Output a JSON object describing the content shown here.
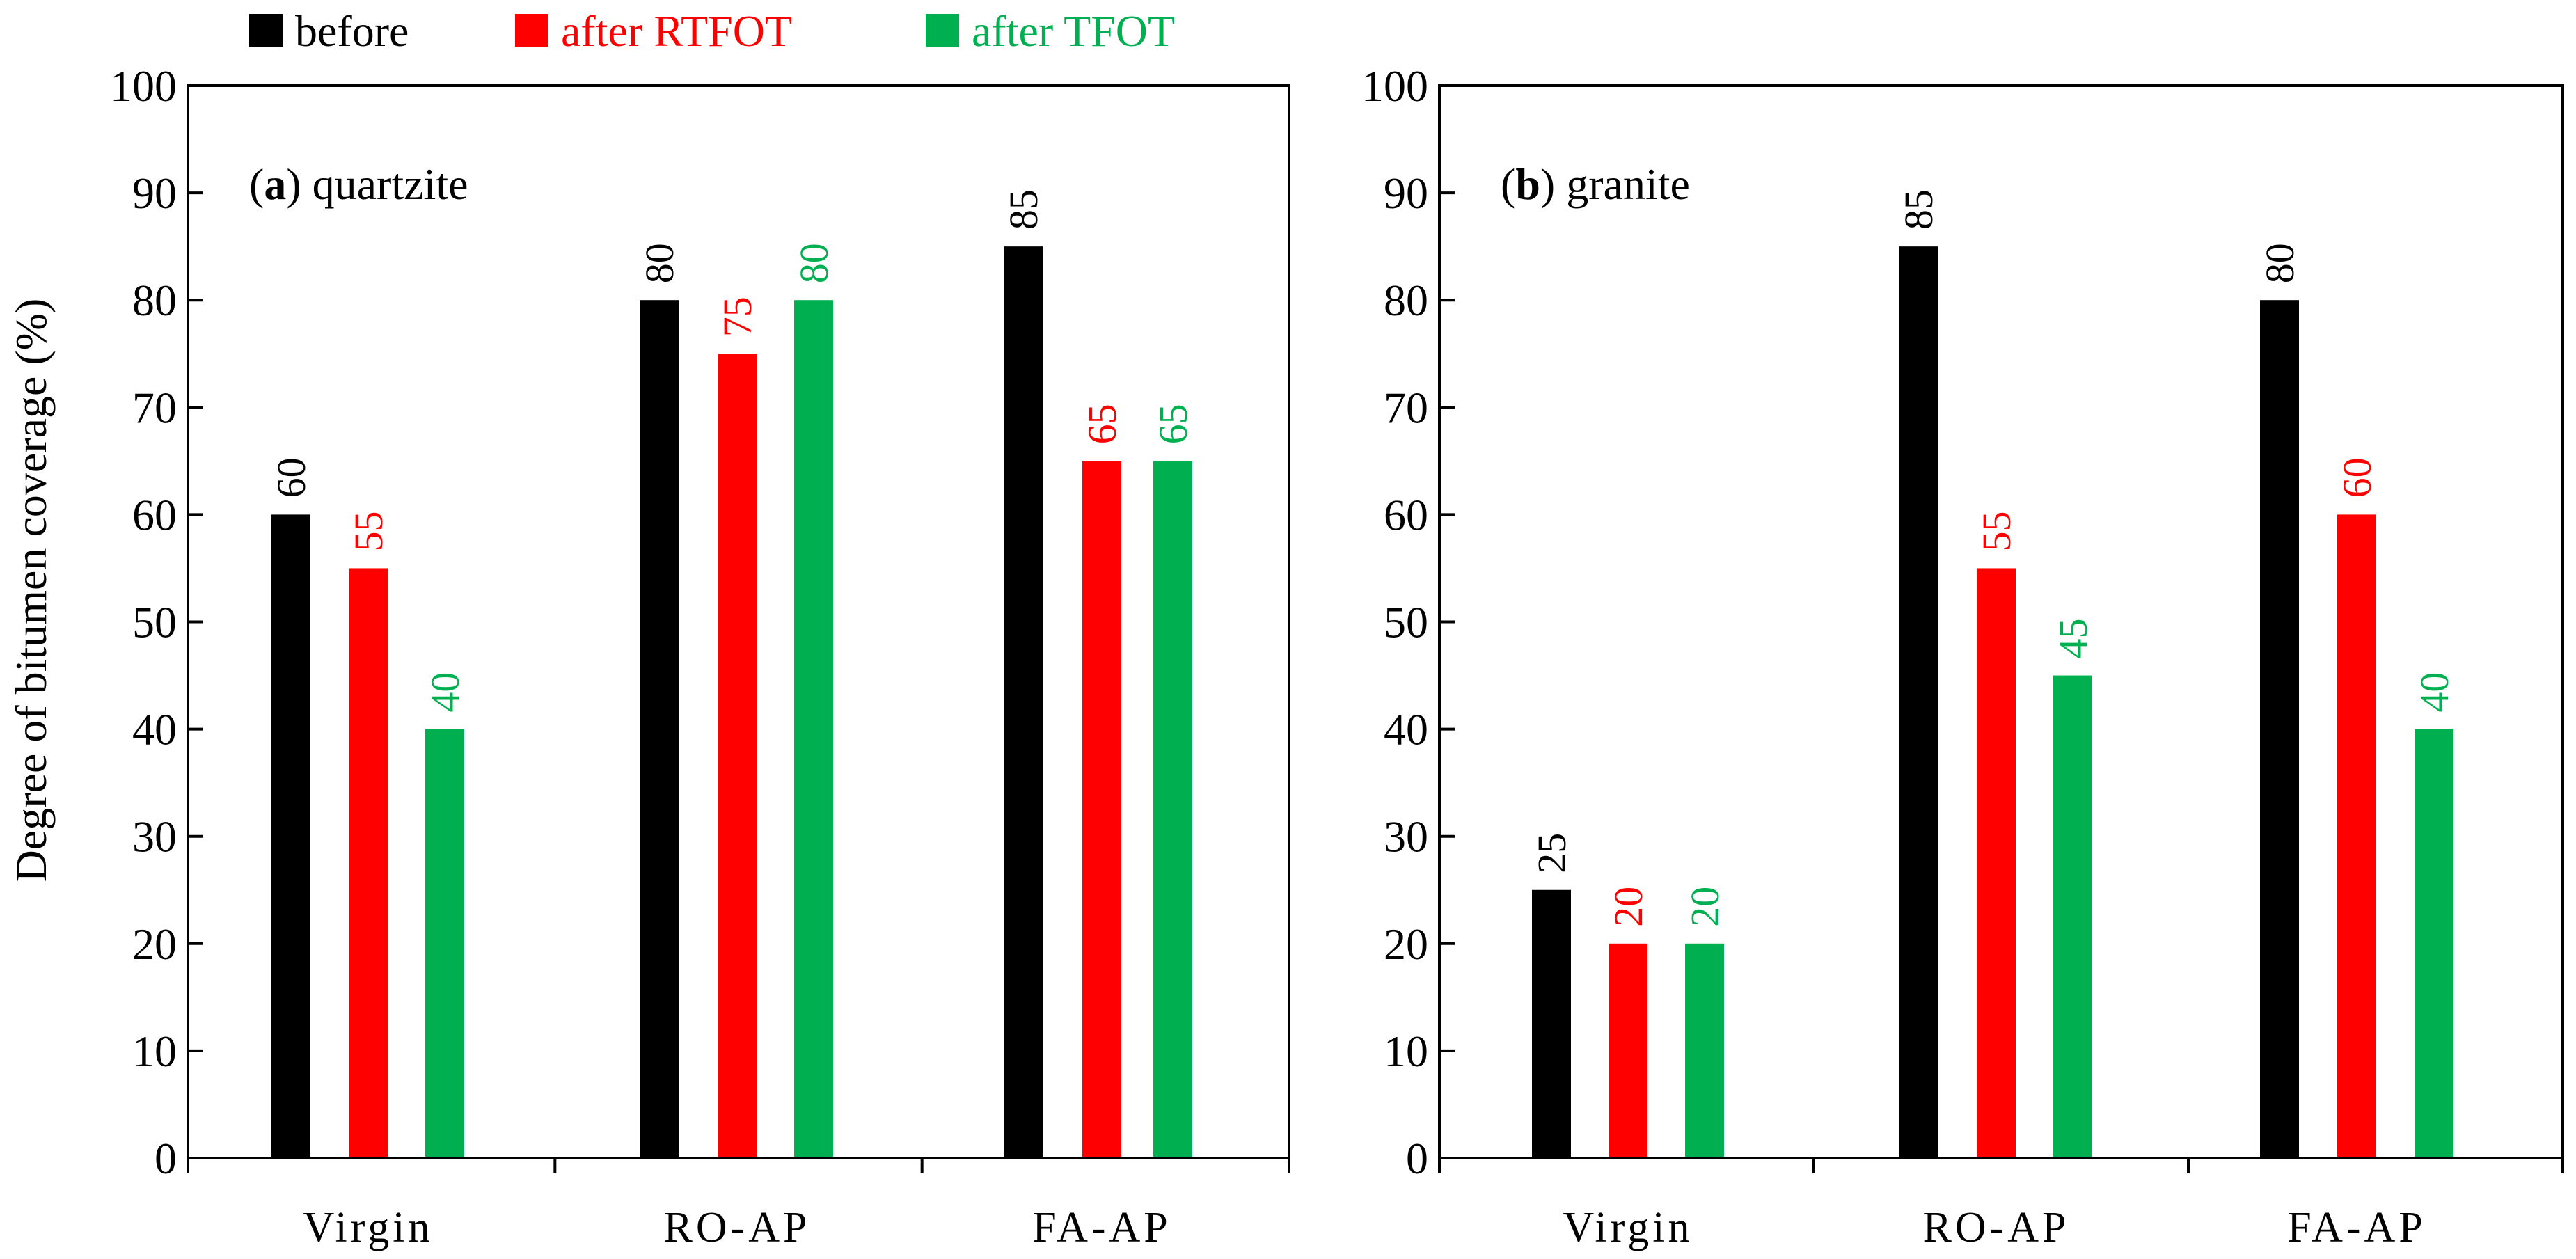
{
  "colors": {
    "before": "#000000",
    "rtfot": "#ff0000",
    "tfot": "#00b050",
    "axis": "#000000"
  },
  "legend": [
    {
      "key": "before",
      "label": "before"
    },
    {
      "key": "rtfot",
      "label": "after  RTFOT"
    },
    {
      "key": "tfot",
      "label": "after  TFOT"
    }
  ],
  "ylabel": "Degree of bitumen coverage (%)",
  "chart_data": [
    {
      "type": "bar",
      "title_letter": "a",
      "title_text": " quartzite",
      "categories": [
        "Virgin",
        "RO-AP",
        "FA-AP"
      ],
      "ylim": [
        0,
        100
      ],
      "yticks": [
        0,
        10,
        20,
        30,
        40,
        50,
        60,
        70,
        80,
        90,
        100
      ],
      "ylabel": "Degree of bitumen coverage (%)",
      "series": [
        {
          "name": "before",
          "key": "before",
          "values": [
            60,
            80,
            85
          ]
        },
        {
          "name": "after RTFOT",
          "key": "rtfot",
          "values": [
            55,
            75,
            65
          ]
        },
        {
          "name": "after TFOT",
          "key": "tfot",
          "values": [
            40,
            80,
            65
          ]
        }
      ]
    },
    {
      "type": "bar",
      "title_letter": "b",
      "title_text": " granite",
      "categories": [
        "Virgin",
        "RO-AP",
        "FA-AP"
      ],
      "ylim": [
        0,
        100
      ],
      "yticks": [
        0,
        10,
        20,
        30,
        40,
        50,
        60,
        70,
        80,
        90,
        100
      ],
      "ylabel": "",
      "series": [
        {
          "name": "before",
          "key": "before",
          "values": [
            25,
            85,
            80
          ]
        },
        {
          "name": "after RTFOT",
          "key": "rtfot",
          "values": [
            20,
            55,
            60
          ]
        },
        {
          "name": "after TFOT",
          "key": "tfot",
          "values": [
            20,
            45,
            40
          ]
        }
      ]
    }
  ]
}
